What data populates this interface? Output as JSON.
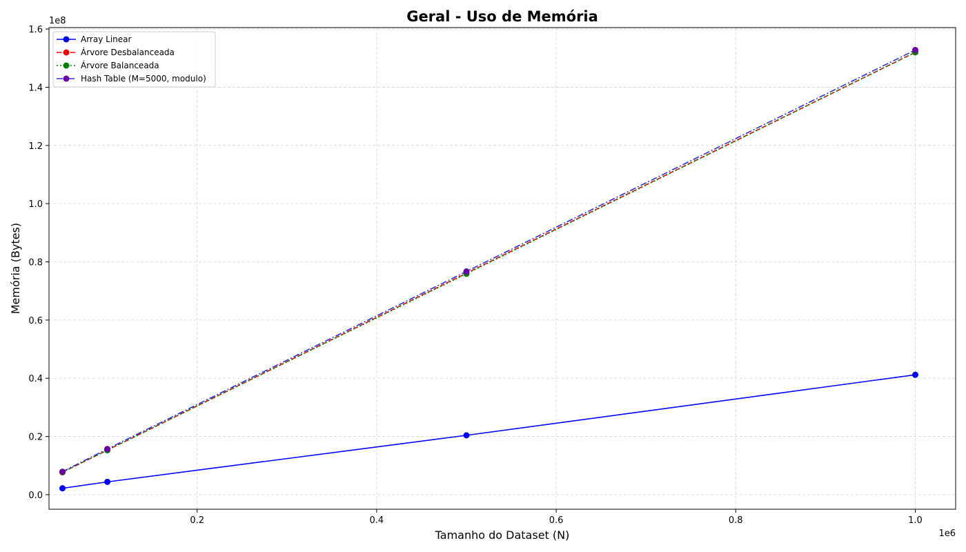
{
  "chart_data": {
    "type": "line",
    "title": "Geral - Uso de Memória",
    "xlabel": "Tamanho do Dataset (N)",
    "ylabel": "Memória (Bytes)",
    "x_offset_label": "1e6",
    "y_offset_label": "1e8",
    "xlim": [
      3.5,
      104.5
    ],
    "ylim": [
      -0.5,
      16.05
    ],
    "x_ticks": [
      20,
      40,
      60,
      80,
      100
    ],
    "x_tick_labels": [
      "0.2",
      "0.4",
      "0.6",
      "0.8",
      "1.0"
    ],
    "y_ticks": [
      0,
      2,
      4,
      6,
      8,
      10,
      12,
      14,
      16
    ],
    "y_tick_labels": [
      "0.0",
      "0.2",
      "0.4",
      "0.6",
      "0.8",
      "1.0",
      "1.2",
      "1.4",
      "1.6"
    ],
    "grid": true,
    "legend_position": "top-left",
    "x": [
      5,
      10,
      50,
      100
    ],
    "series": [
      {
        "name": "Array Linear",
        "values": [
          0.22,
          0.44,
          2.04,
          4.12
        ],
        "color": "#0000ff",
        "dash": "",
        "marker_color": "#0000ff"
      },
      {
        "name": "Árvore Desbalanceada",
        "values": [
          0.77,
          1.53,
          7.61,
          15.2
        ],
        "color": "#ff0000",
        "dash": "7 3",
        "marker_color": "#ff0000"
      },
      {
        "name": "Árvore Balanceada",
        "values": [
          0.77,
          1.53,
          7.59,
          15.2
        ],
        "color": "#008000",
        "dash": "2 3",
        "marker_color": "#008000"
      },
      {
        "name": "Hash Table (M=5000, modulo)",
        "values": [
          0.79,
          1.57,
          7.67,
          15.28
        ],
        "color": "#6a00a8",
        "dash": "9 3 2 3",
        "marker_color": "#6a00a8",
        "line_color": "#3030d0"
      }
    ]
  }
}
